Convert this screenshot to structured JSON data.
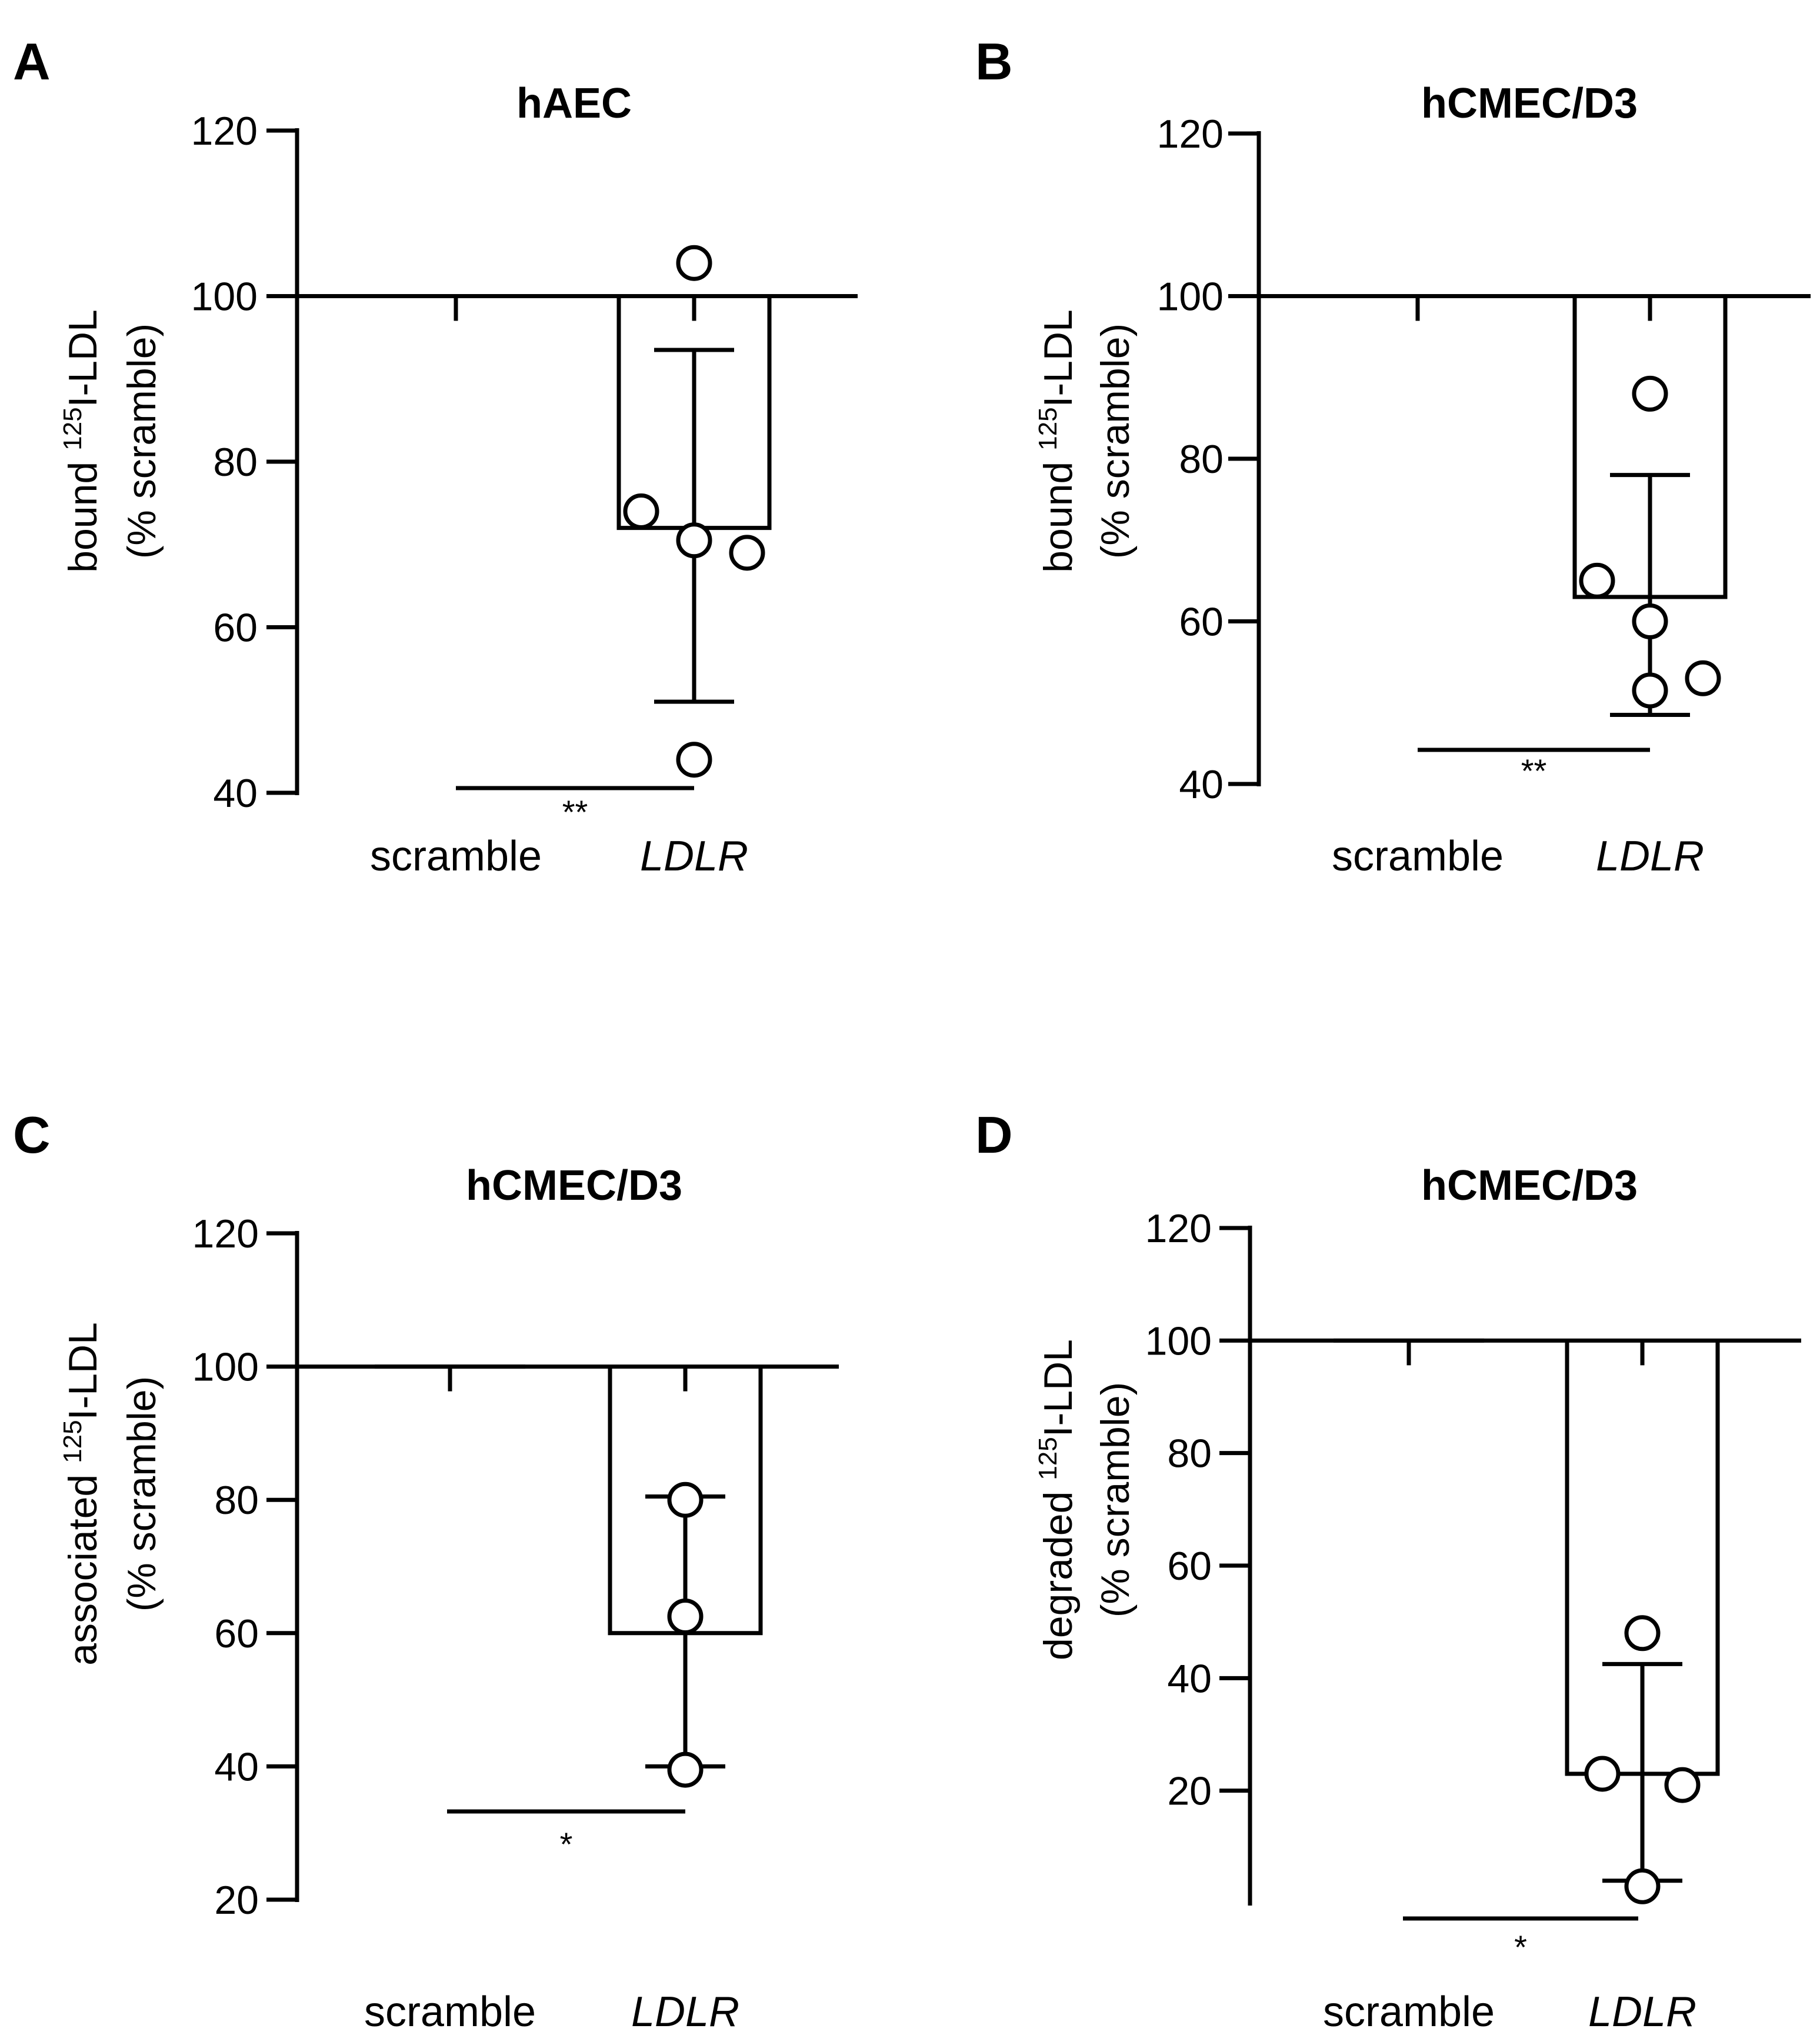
{
  "chart_data": [
    {
      "id": "A",
      "type": "bar",
      "panel_letter": "A",
      "title": "hAEC",
      "ylabel_line1_pre": "bound ",
      "ylabel_line1_sup": "125",
      "ylabel_line1_post": "I-LDL",
      "ylabel_line2": "(% scramble)",
      "categories": [
        "scramble",
        "LDLR"
      ],
      "baseline": 100,
      "ylim": [
        40,
        120
      ],
      "yticks": [
        40,
        60,
        80,
        100,
        120
      ],
      "bars": [
        {
          "category": "scramble",
          "mean": 100,
          "err_low": 100,
          "err_high": 100,
          "points": []
        },
        {
          "category": "LDLR",
          "mean": 72,
          "err_low": 51,
          "err_high": 93.5,
          "points": [
            104,
            74,
            70.5,
            69,
            44
          ]
        }
      ],
      "significance": "**"
    },
    {
      "id": "B",
      "type": "bar",
      "panel_letter": "B",
      "title": "hCMEC/D3",
      "ylabel_line1_pre": "bound ",
      "ylabel_line1_sup": "125",
      "ylabel_line1_post": "I-LDL",
      "ylabel_line2": "(% scramble)",
      "categories": [
        "scramble",
        "LDLR"
      ],
      "baseline": 100,
      "ylim": [
        40,
        120
      ],
      "yticks": [
        40,
        60,
        80,
        100,
        120
      ],
      "bars": [
        {
          "category": "scramble",
          "mean": 100,
          "err_low": 100,
          "err_high": 100,
          "points": []
        },
        {
          "category": "LDLR",
          "mean": 63,
          "err_low": 48.5,
          "err_high": 78,
          "points": [
            88,
            65,
            60,
            53,
            51.5
          ]
        }
      ],
      "significance": "**"
    },
    {
      "id": "C",
      "type": "bar",
      "panel_letter": "C",
      "title": "hCMEC/D3",
      "ylabel_line1_pre": "associated ",
      "ylabel_line1_sup": "125",
      "ylabel_line1_post": "I-LDL",
      "ylabel_line2": "(% scramble)",
      "categories": [
        "scramble",
        "LDLR"
      ],
      "baseline": 100,
      "ylim": [
        20,
        120
      ],
      "yticks": [
        20,
        40,
        60,
        80,
        100,
        120
      ],
      "bars": [
        {
          "category": "scramble",
          "mean": 100,
          "err_low": 100,
          "err_high": 100,
          "points": []
        },
        {
          "category": "LDLR",
          "mean": 60,
          "err_low": 40,
          "err_high": 80.5,
          "points": [
            80,
            62.5,
            39.5
          ]
        }
      ],
      "significance": "*"
    },
    {
      "id": "D",
      "type": "bar",
      "panel_letter": "D",
      "title": "hCMEC/D3",
      "ylabel_line1_pre": "degraded ",
      "ylabel_line1_sup": "125",
      "ylabel_line1_post": "I-LDL",
      "ylabel_line2": "(% scramble)",
      "categories": [
        "scramble",
        "LDLR"
      ],
      "baseline": 100,
      "ylim": [
        0,
        120
      ],
      "yticks": [
        20,
        40,
        60,
        80,
        100,
        120
      ],
      "bars": [
        {
          "category": "scramble",
          "mean": 100,
          "err_low": 100,
          "err_high": 100,
          "points": []
        },
        {
          "category": "LDLR",
          "mean": 23,
          "err_low": 4,
          "err_high": 42.5,
          "points": [
            48,
            23,
            21,
            3
          ]
        }
      ],
      "significance": "*"
    }
  ]
}
